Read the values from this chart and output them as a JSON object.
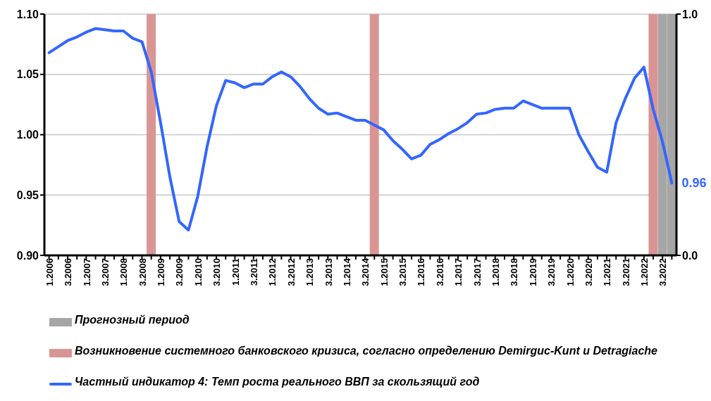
{
  "chart_data": {
    "type": "line",
    "categories": [
      "1.2006",
      null,
      "3.2006",
      null,
      "1.2007",
      null,
      "3.2007",
      null,
      "1.2008",
      null,
      "3.2008",
      null,
      "1.2009",
      null,
      "3.2009",
      null,
      "1.2010",
      null,
      "3.2010",
      null,
      "1.2011",
      null,
      "3.2011",
      null,
      "1.2012",
      null,
      "3.2012",
      null,
      "1.2013",
      null,
      "3.2013",
      null,
      "1.2014",
      null,
      "3.2014",
      null,
      "1.2015",
      null,
      "3.2015",
      null,
      "1.2016",
      null,
      "3.2016",
      null,
      "1.2017",
      null,
      "3.2017",
      null,
      "1.2018",
      null,
      "3.2018",
      null,
      "1.2019",
      null,
      "3.2019",
      null,
      "1.2020",
      null,
      "3.2020",
      null,
      "1.2021",
      null,
      "3.2021",
      null,
      "1.2022",
      null,
      "3.2022",
      null
    ],
    "series": [
      {
        "name": "Прогнозный период",
        "type": "bar",
        "axis": "y2",
        "color": "#a6a6a6",
        "values": [
          null,
          null,
          null,
          null,
          null,
          null,
          null,
          null,
          null,
          null,
          null,
          null,
          null,
          null,
          null,
          null,
          null,
          null,
          null,
          null,
          null,
          null,
          null,
          null,
          null,
          null,
          null,
          null,
          null,
          null,
          null,
          null,
          null,
          null,
          null,
          null,
          null,
          null,
          null,
          null,
          null,
          null,
          null,
          null,
          null,
          null,
          null,
          null,
          null,
          null,
          null,
          null,
          null,
          null,
          null,
          null,
          null,
          null,
          null,
          null,
          null,
          null,
          null,
          null,
          null,
          null,
          1,
          1
        ]
      },
      {
        "name": "Возникновение системного банковского кризиса, согласно определению Demirguc-Kunt и Detragiache",
        "type": "bar",
        "axis": "y2",
        "color": "#d99594",
        "values": [
          null,
          null,
          null,
          null,
          null,
          null,
          null,
          null,
          null,
          null,
          null,
          1,
          null,
          null,
          null,
          null,
          null,
          null,
          null,
          null,
          null,
          null,
          null,
          null,
          null,
          null,
          null,
          null,
          null,
          null,
          null,
          null,
          null,
          null,
          null,
          1,
          null,
          null,
          null,
          null,
          null,
          null,
          null,
          null,
          null,
          null,
          null,
          null,
          null,
          null,
          null,
          null,
          null,
          null,
          null,
          null,
          null,
          null,
          null,
          null,
          null,
          null,
          null,
          null,
          null,
          1,
          null,
          null
        ]
      },
      {
        "name": "Частный индикатор 4: Темп роста реального ВВП за скользящий год",
        "color": "#3366ff",
        "values": [
          1.068,
          1.073,
          1.078,
          1.081,
          1.085,
          1.088,
          1.087,
          1.086,
          1.086,
          1.08,
          1.077,
          1.052,
          1.01,
          0.965,
          0.928,
          0.921,
          0.949,
          0.99,
          1.024,
          1.045,
          1.043,
          1.039,
          1.042,
          1.042,
          1.048,
          1.052,
          1.048,
          1.04,
          1.03,
          1.022,
          1.017,
          1.018,
          1.015,
          1.012,
          1.012,
          1.008,
          1.004,
          0.995,
          0.988,
          0.98,
          0.983,
          0.992,
          0.996,
          1.001,
          1.005,
          1.01,
          1.017,
          1.018,
          1.021,
          1.022,
          1.022,
          1.028,
          1.025,
          1.022,
          1.022,
          1.022,
          1.022,
          1.0,
          0.986,
          0.973,
          0.969,
          1.01,
          1.03,
          1.047,
          1.056,
          1.021,
          0.994,
          0.96
        ],
        "value_labels": [
          null,
          null,
          null,
          null,
          null,
          null,
          null,
          null,
          null,
          null,
          null,
          null,
          null,
          null,
          null,
          null,
          null,
          null,
          null,
          null,
          null,
          null,
          null,
          null,
          null,
          null,
          null,
          null,
          null,
          null,
          null,
          null,
          null,
          null,
          null,
          null,
          null,
          null,
          null,
          null,
          null,
          null,
          null,
          null,
          null,
          null,
          null,
          null,
          null,
          null,
          null,
          null,
          null,
          null,
          null,
          null,
          null,
          null,
          null,
          null,
          null,
          null,
          null,
          null,
          null,
          null,
          null,
          "0.96"
        ]
      }
    ],
    "stacked": true,
    "ylim": [
      0.9,
      1.1
    ],
    "yticks": [
      {
        "value": 0.9,
        "label": "0.90"
      },
      {
        "value": 0.95,
        "label": "0.95"
      },
      {
        "value": 1.0,
        "label": "1.00"
      },
      {
        "value": 1.05,
        "label": "1.05"
      },
      {
        "value": 1.1,
        "label": "1.10"
      }
    ],
    "y2lim": [
      0,
      1
    ],
    "y2ticks": [
      {
        "value": 0,
        "label": "0.0"
      },
      {
        "value": 1,
        "label": "1.0"
      }
    ],
    "grid": "y",
    "legend": "bottom",
    "marker": "none",
    "line_style": "solid"
  }
}
